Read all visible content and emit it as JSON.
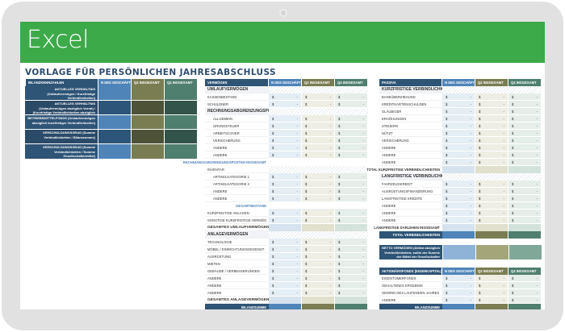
{
  "app": {
    "banner_title": "Excel",
    "document_title": "VORLAGE FÜR PERSÖNLICHEN JAHRESABSCHLUSS"
  },
  "colors": {
    "banner": "#3daa4a",
    "navy": "#2e5476",
    "blue": "#4f84b8",
    "olive": "#7a7d52",
    "teal": "#4f7f6e",
    "title": "#2e4e6e"
  },
  "columns": {
    "period1": "N DES GESCHÄFTSJ",
    "q2": "Q2 INSGESAMT",
    "q4": "Q4 INSGESAMT"
  },
  "currency": "$",
  "dash": "-",
  "kpi": {
    "header": "BILANZKENNZAHLEN",
    "rows": [
      {
        "label": "AKTUELLES VERHÄLTNIS (Umlaufvermögen / Kurzfristige Verbindlichkeiten)"
      },
      {
        "label": "AKTUELLES VERHÄLTNIS (Umlaufvermögen abzüglich Vorrat) / (Kurzfristige Verbindlichkeiten abzüglich Bankbürgschaften)"
      },
      {
        "label": "BETRIEBSMITTELFONDS (Umlaufvermögen abzüglich kurzfristiger Verbindlichkeiten)"
      },
      {
        "label": "VERSCHULDUNGSGRAD (Summe Verbindlichkeiten / Bilanzsumme)"
      },
      {
        "label": "VERSCHULDUNGSGRAD (Summe Verbindlichkeiten / Summe Gesellschaftermittel)"
      }
    ]
  },
  "assets": {
    "header": "VERMÖGEN",
    "current_section": "UMLAUFVERMÖGEN",
    "cash": "KASSENBESTAND",
    "debtors": "SCHULDNER",
    "prepaid_section": "RECHNUNGSABGRENZUNGSPOSTEN",
    "prepaid_items": [
      "ALLGEMEIN",
      "GRUNDSTEUER",
      "ARBEITSCOVER",
      "VERSICHERUNG",
      "ANDERE",
      "ANDERE"
    ],
    "prepaid_total": "RECHNUNGSABGRENZUNGSPOSTEN INSGESAMT",
    "inventory": "INVENTAR",
    "inventory_items": [
      "ARTIKELKATEGORIE 1",
      "ARTIKELKATEGORIE 2",
      "ANDERE",
      "ANDERE"
    ],
    "inventory_total": "GESAMTBESTAND",
    "short_term_investments": "KURZFRISTIGE ANLAGEN",
    "other_current": "SONSTIGE KURZFRISTIGE VERMÖG",
    "current_total": "GESAMTES UMLAUFVERMÖGEN",
    "fixed_section": "ANLAGEVERMÖGEN",
    "fixed_items": [
      "TECHNOLOGIE",
      "MÖBEL / EINRICHTUNGSGEGENST.",
      "AUSRÜSTUNG",
      "MIETEN",
      "GEBÄUDE / VERBESSERUNGEN",
      "ANDERE",
      "ANDERE",
      "ANDERE"
    ],
    "fixed_total": "GESAMTES ANLAGEVERMÖGEN",
    "balance_total": "BILANZSUMME"
  },
  "liabilities": {
    "header": "PASSIVA",
    "current_section": "KURZFRISTIGE VERBINDLICHKEITEN",
    "current_items": [
      "BANKÜBERZIEHUNG",
      "KREDITKARTENSCHULDEN",
      "GLÄUBIGER",
      "ERHÖHUNGEN",
      "STEUERN",
      "NÜTZT",
      "VERSICHERUNG",
      "ANDERE",
      "ANDERE",
      "ANDERE"
    ],
    "current_total": "TOTAL KURZFRISTIGE VERBINDLICHKEITEN",
    "long_section": "LANGFRISTIGE VERBINDLICHKEITEN",
    "long_items": [
      "FAHRZEUGKREDIT",
      "AUSRÜSTUNGSFINANZIERUNG",
      "LANGFRISTIGE KREDITE",
      "ANDERE",
      "ANDERE",
      "ANDERE"
    ],
    "long_total": "LANGFRISTIGE DARLEHEN INSGESAMT",
    "total": "TOTAL VERBINDLICHKEITEN",
    "net_assets": "NETTO VERMÖGEN (Aktiva abzüglich Verbindlichkeiten; sollte der Summe der Mittel der Gesellschafter entsprechen)",
    "equity_header": "AKTIONÄRSFONDS (EIGENKAPITAL)",
    "equity_items": [
      "EIGENTÜMERFONDS",
      "GEHALTENES ERGEBNIS",
      "GEWINN DES LAUFENDEN JAHRES",
      "ANDERE"
    ],
    "balance_total": "BILANZSUMME"
  }
}
